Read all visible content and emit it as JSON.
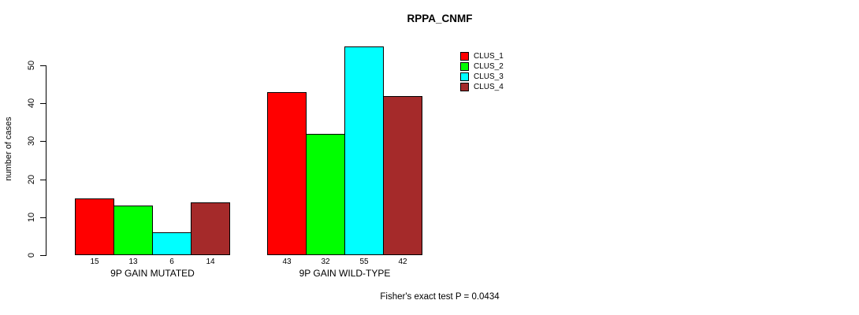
{
  "chart_data": {
    "type": "bar",
    "title": "RPPA_CNMF",
    "ylabel": "number of cases",
    "xlabel": "",
    "ylim": [
      0,
      55
    ],
    "yticks": [
      0,
      10,
      20,
      30,
      40,
      50
    ],
    "grid": false,
    "legend_position": "top-right",
    "bar_value_labels_shown": true,
    "categories": [
      "9P GAIN MUTATED",
      "9P GAIN WILD-TYPE"
    ],
    "series": [
      {
        "name": "CLUS_1",
        "color": "#FF0000",
        "values": [
          15,
          43
        ]
      },
      {
        "name": "CLUS_2",
        "color": "#00FF00",
        "values": [
          13,
          32
        ]
      },
      {
        "name": "CLUS_3",
        "color": "#00FFFF",
        "values": [
          6,
          55
        ]
      },
      {
        "name": "CLUS_4",
        "color": "#A52A2A",
        "values": [
          14,
          42
        ]
      }
    ],
    "annotation": "Fisher's exact test P = 0.0434"
  },
  "colors": {
    "axis": "#000000",
    "background": "#FFFFFF",
    "bar_border": "#000000"
  }
}
